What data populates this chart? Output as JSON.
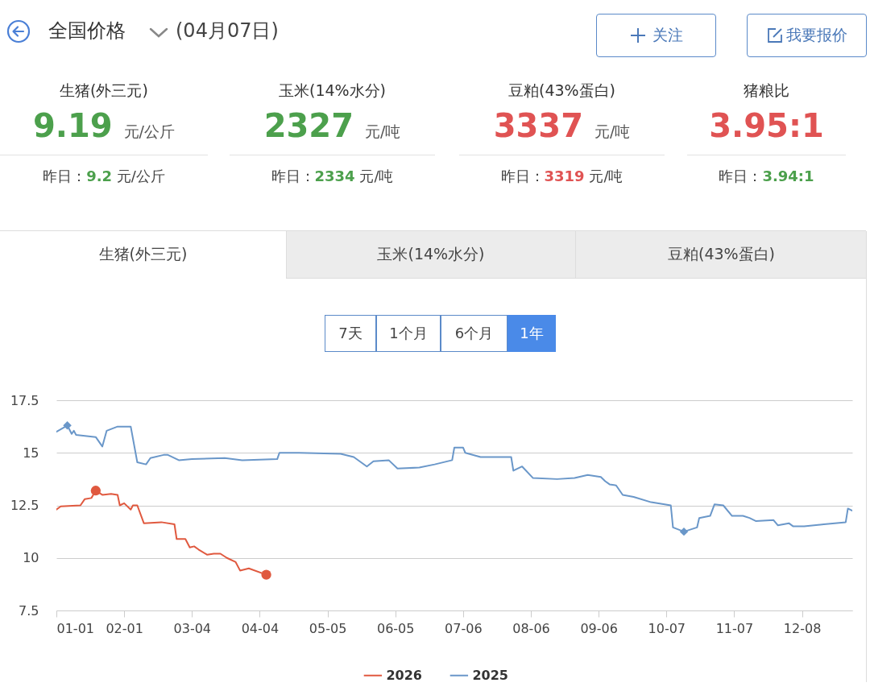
{
  "chart_data": [
    {
      "type": "other",
      "title": "全国价格",
      "subtitle": "(04月07日)",
      "annotations": [
        "关注",
        "我要报价",
        "生猪(外三元)",
        "9.19 元/公斤",
        "昨日：9.2 元/公斤",
        "玉米(14%水分)",
        "2327 元/吨",
        "昨日：2334 元/吨",
        "豆粕(43%蛋白)",
        "3337 元/吨",
        "昨日：3319 元/吨",
        "猪粮比",
        "3.95:1",
        "昨日：3.94:1",
        "生猪(外三元)",
        "玉米(14%水分)",
        "豆粕(43%蛋白)",
        "7天",
        "1个月",
        "6个月",
        "1年"
      ]
    },
    {
      "type": "line",
      "xlim": [
        "--01-01",
        "--12-31"
      ],
      "ylim": [
        7.5,
        17.5
      ],
      "yticks": [
        7.5,
        10,
        12.5,
        15,
        17.5
      ],
      "xticks": [
        {
          "value": "--01-01",
          "label": "01-01"
        },
        {
          "value": "--02-01",
          "label": "02-01"
        },
        {
          "value": "--03-04",
          "label": "03-04"
        },
        {
          "value": "--04-04",
          "label": "04-04"
        },
        {
          "value": "--05-05",
          "label": "05-05"
        },
        {
          "value": "--06-05",
          "label": "06-05"
        },
        {
          "value": "--07-06",
          "label": "07-06"
        },
        {
          "value": "--08-06",
          "label": "08-06"
        },
        {
          "value": "--09-06",
          "label": "09-06"
        },
        {
          "value": "--10-07",
          "label": "10-07"
        },
        {
          "value": "--11-07",
          "label": "11-07"
        },
        {
          "value": "--12-08",
          "label": "12-08"
        }
      ],
      "grid": "y",
      "legend": "bottom",
      "marker": "none",
      "line_style": "solid",
      "series": [
        {
          "name": "2026",
          "color": "#e0593f",
          "x": [
            "--01-01",
            "--01-03",
            "--01-12",
            "--01-14",
            "--01-17",
            "--01-19",
            "--01-22",
            "--01-26",
            "--01-29",
            "--01-30",
            "--02-01",
            "--02-04",
            "--02-05",
            "--02-07",
            "--02-10",
            "--02-18",
            "--02-24",
            "--02-25",
            "--03-01",
            "--03-03",
            "--03-05",
            "--03-07",
            "--03-11",
            "--03-14",
            "--03-17",
            "--03-20",
            "--03-24",
            "--03-26",
            "--03-30",
            "--04-07"
          ],
          "values": [
            12.3,
            12.45,
            12.5,
            12.8,
            12.85,
            13.2,
            13.0,
            13.05,
            13.0,
            12.5,
            12.6,
            12.3,
            12.5,
            12.5,
            11.65,
            11.7,
            11.6,
            10.9,
            10.9,
            10.5,
            10.55,
            10.4,
            10.15,
            10.2,
            10.2,
            10.0,
            9.8,
            9.4,
            9.5,
            9.2
          ]
        },
        {
          "name": "2025",
          "color": "#6a97c9",
          "x": [
            "--01-01",
            "--01-06",
            "--01-08",
            "--01-09",
            "--01-10",
            "--01-19",
            "--01-22",
            "--01-24",
            "--01-29",
            "--02-04",
            "--02-07",
            "--02-11",
            "--02-13",
            "--02-19",
            "--02-21",
            "--02-26",
            "--03-04",
            "--03-19",
            "--03-27",
            "--04-12",
            "--04-13",
            "--04-22",
            "--05-11",
            "--05-17",
            "--05-23",
            "--05-26",
            "--06-02",
            "--06-06",
            "--06-16",
            "--06-23",
            "--07-01",
            "--07-02",
            "--07-06",
            "--07-07",
            "--07-14",
            "--07-28",
            "--07-29",
            "--08-02",
            "--08-07",
            "--08-18",
            "--08-26",
            "--09-01",
            "--09-07",
            "--09-09",
            "--09-11",
            "--09-14",
            "--09-17",
            "--09-22",
            "--09-30",
            "--10-09",
            "--10-10",
            "--10-15",
            "--10-21",
            "--10-22",
            "--10-27",
            "--10-29",
            "--11-02",
            "--11-06",
            "--11-11",
            "--11-14",
            "--11-17",
            "--11-25",
            "--11-27",
            "--12-02",
            "--12-04",
            "--12-09",
            "--12-18",
            "--12-28",
            "--12-29",
            "--12-31"
          ],
          "values": [
            16.0,
            16.3,
            15.9,
            16.05,
            15.85,
            15.75,
            15.3,
            16.05,
            16.25,
            16.25,
            14.55,
            14.45,
            14.75,
            14.9,
            14.9,
            14.65,
            14.7,
            14.75,
            14.65,
            14.7,
            15.0,
            15.0,
            14.95,
            14.8,
            14.35,
            14.6,
            14.65,
            14.25,
            14.3,
            14.45,
            14.65,
            15.25,
            15.25,
            15.0,
            14.8,
            14.8,
            14.15,
            14.35,
            13.8,
            13.75,
            13.8,
            13.95,
            13.85,
            13.65,
            13.5,
            13.45,
            13.0,
            12.9,
            12.65,
            12.5,
            11.45,
            11.25,
            11.45,
            11.9,
            12.0,
            12.55,
            12.5,
            12.0,
            12.0,
            11.9,
            11.75,
            11.8,
            11.55,
            11.65,
            11.5,
            11.5,
            11.6,
            11.7,
            12.35,
            12.25
          ]
        },
        {
          "type": "scatter",
          "marker": "circle",
          "color": "#e0593f",
          "x": [
            "--01-19",
            "--04-07"
          ],
          "values": [
            13.2,
            9.2
          ]
        },
        {
          "type": "scatter",
          "marker": "diamond",
          "color": "#6a97c9",
          "x": [
            "--01-06",
            "--10-15"
          ],
          "values": [
            16.3,
            11.25
          ]
        }
      ]
    }
  ]
}
